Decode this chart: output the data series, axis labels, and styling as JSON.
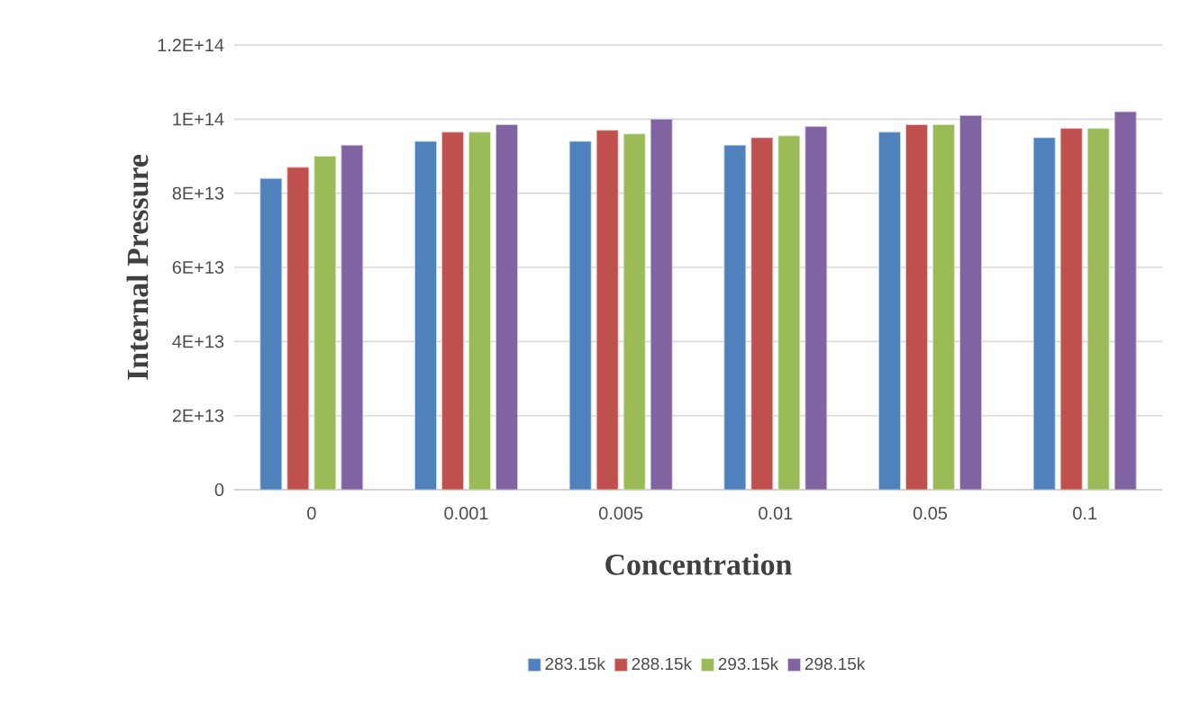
{
  "chart_data": {
    "type": "bar",
    "xlabel": "Concentration",
    "ylabel": "Internal Pressure",
    "categories": [
      "0",
      "0.001",
      "0.005",
      "0.01",
      "0.05",
      "0.1"
    ],
    "series": [
      {
        "name": "283.15k",
        "color": "#4f81bd",
        "values": [
          84000000000000.0,
          94000000000000.0,
          94000000000000.0,
          93000000000000.0,
          96500000000000.0,
          95000000000000.0
        ]
      },
      {
        "name": "288.15k",
        "color": "#c0504d",
        "values": [
          87000000000000.0,
          96500000000000.0,
          97000000000000.0,
          95000000000000.0,
          98500000000000.0,
          97500000000000.0
        ]
      },
      {
        "name": "293.15k",
        "color": "#9bbb59",
        "values": [
          90000000000000.0,
          96500000000000.0,
          96000000000000.0,
          95500000000000.0,
          98500000000000.0,
          97500000000000.0
        ]
      },
      {
        "name": "298.15k",
        "color": "#8064a2",
        "values": [
          93000000000000.0,
          98500000000000.0,
          100000000000000.0,
          98000000000000.0,
          101000000000000.0,
          102000000000000.0
        ]
      }
    ],
    "ylim": [
      0,
      120000000000000.0
    ],
    "yticks": [
      0,
      {
        "value": 20000000000000.0,
        "label": "2E+13"
      },
      {
        "value": 40000000000000.0,
        "label": "4E+13"
      },
      {
        "value": 60000000000000.0,
        "label": "6E+13"
      },
      {
        "value": 80000000000000.0,
        "label": "8E+13"
      },
      {
        "value": 100000000000000.0,
        "label": "1E+14"
      },
      {
        "value": 120000000000000.0,
        "label": "1.2E+14"
      }
    ],
    "grid": "y",
    "legend": "bottom"
  }
}
